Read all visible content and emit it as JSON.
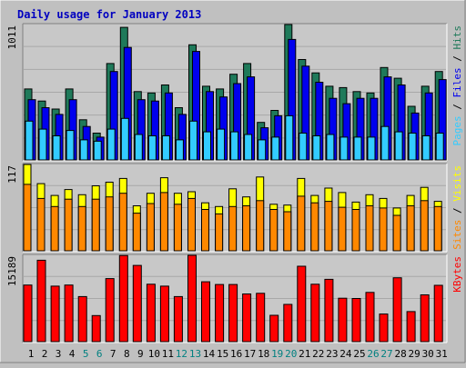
{
  "title": "Daily usage for January 2013",
  "colors": {
    "background": "#c0c0c0",
    "panel": "#c8c8c8",
    "title": "#0000c0",
    "hits": "#1f7a5a",
    "files": "#0000ee",
    "pages": "#33ccff",
    "visits": "#ffff00",
    "sites": "#ff8800",
    "kbytes": "#ff0000",
    "weekend_label": "#008080"
  },
  "chart_data": [
    {
      "type": "bar",
      "name": "hits-files-pages",
      "max_label": "1011",
      "ylim": [
        0,
        1011
      ],
      "categories": [
        "1",
        "2",
        "3",
        "4",
        "5",
        "6",
        "7",
        "8",
        "9",
        "10",
        "11",
        "12",
        "13",
        "14",
        "15",
        "16",
        "17",
        "18",
        "19",
        "20",
        "21",
        "22",
        "23",
        "24",
        "25",
        "26",
        "27",
        "28",
        "29",
        "30",
        "31"
      ],
      "series": [
        {
          "name": "Hits",
          "values": [
            530,
            440,
            380,
            530,
            300,
            200,
            720,
            990,
            510,
            500,
            560,
            390,
            860,
            550,
            530,
            640,
            720,
            280,
            370,
            1040,
            750,
            650,
            550,
            540,
            510,
            500,
            690,
            610,
            400,
            550,
            660
          ]
        },
        {
          "name": "Files",
          "values": [
            450,
            390,
            340,
            450,
            250,
            170,
            660,
            840,
            450,
            440,
            500,
            340,
            810,
            510,
            470,
            570,
            620,
            240,
            330,
            900,
            700,
            580,
            460,
            420,
            460,
            460,
            620,
            560,
            350,
            500,
            600
          ]
        },
        {
          "name": "Pages",
          "values": [
            290,
            230,
            180,
            220,
            150,
            140,
            230,
            310,
            190,
            180,
            180,
            150,
            290,
            210,
            230,
            210,
            190,
            150,
            170,
            330,
            200,
            180,
            190,
            170,
            170,
            170,
            250,
            210,
            200,
            180,
            200
          ]
        }
      ],
      "legend": [
        "Pages",
        "Files",
        "Hits"
      ]
    },
    {
      "type": "bar",
      "name": "visits-sites",
      "max_label": "117",
      "ylim": [
        0,
        117
      ],
      "series": [
        {
          "name": "Visits",
          "values": [
            117,
            91,
            75,
            83,
            76,
            88,
            93,
            98,
            61,
            78,
            99,
            78,
            80,
            65,
            60,
            84,
            73,
            100,
            63,
            62,
            98,
            75,
            85,
            79,
            66,
            76,
            71,
            58,
            75,
            86,
            67
          ]
        },
        {
          "name": "Sites",
          "values": [
            90,
            71,
            60,
            70,
            60,
            70,
            73,
            78,
            51,
            64,
            79,
            63,
            71,
            56,
            50,
            60,
            61,
            68,
            56,
            53,
            74,
            65,
            67,
            59,
            56,
            61,
            58,
            48,
            61,
            68,
            60
          ]
        }
      ],
      "legend": [
        "Sites",
        "Visits"
      ]
    },
    {
      "type": "bar",
      "name": "kbytes",
      "max_label": "15189",
      "ylim": [
        0,
        15189
      ],
      "series": [
        {
          "name": "KBytes",
          "values": [
            9960,
            14330,
            9770,
            9960,
            7930,
            4590,
            11090,
            15150,
            13420,
            10100,
            9770,
            7930,
            15190,
            10540,
            10050,
            10050,
            8390,
            8510,
            4640,
            6550,
            13270,
            10100,
            10970,
            7640,
            7590,
            8660,
            4860,
            11240,
            5300,
            8240,
            9910
          ]
        }
      ],
      "legend": [
        "KBytes"
      ]
    }
  ],
  "x_labels": [
    "1",
    "2",
    "3",
    "4",
    "5",
    "6",
    "7",
    "8",
    "9",
    "10",
    "11",
    "12",
    "13",
    "14",
    "15",
    "16",
    "17",
    "18",
    "19",
    "20",
    "21",
    "22",
    "23",
    "24",
    "25",
    "26",
    "27",
    "28",
    "29",
    "30",
    "31"
  ],
  "weekend_days": [
    5,
    6,
    12,
    13,
    19,
    20,
    26,
    27
  ]
}
